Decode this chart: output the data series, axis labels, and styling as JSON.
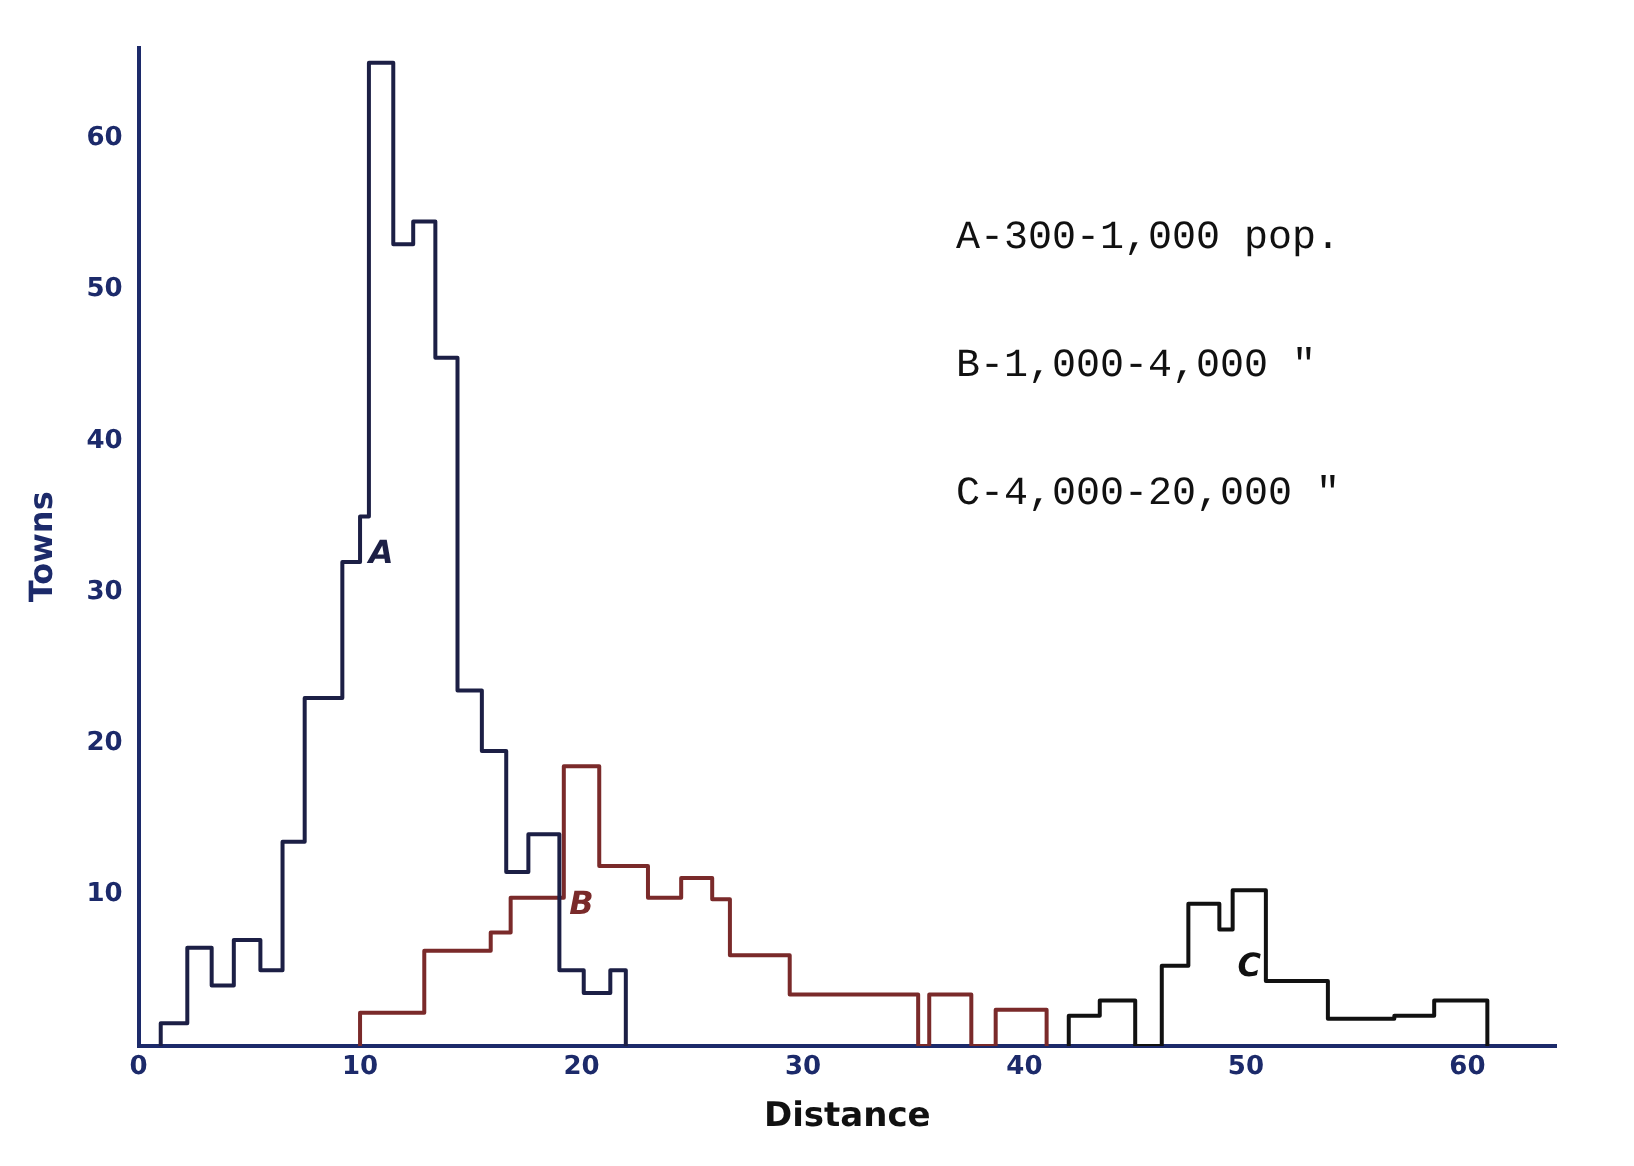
{
  "chart_data": {
    "type": "step",
    "xlabel": "Distance",
    "ylabel": "Towns",
    "xlim": [
      0,
      64
    ],
    "ylim": [
      0,
      66
    ],
    "xticks": [
      0,
      10,
      20,
      30,
      40,
      50,
      60
    ],
    "yticks": [
      10,
      20,
      30,
      40,
      50,
      60
    ],
    "grid": false,
    "legend": false,
    "marker": "none",
    "annotations": [
      "A-300-1,000 pop.",
      "B-1,000-4,000 \"",
      "C-4,000-20,000 \""
    ],
    "series": [
      {
        "name": "A",
        "color": "#1c1f45",
        "x": [
          1,
          1,
          2.2,
          3.3,
          4.3,
          5.5,
          6.5,
          7.5,
          9.2,
          10,
          10.4,
          11.5,
          12.4,
          13.4,
          14.4,
          15.5,
          16.6,
          17.6,
          19,
          20.1,
          21.3,
          22
        ],
        "values": [
          0,
          1.5,
          6.5,
          4,
          7,
          5,
          13.5,
          23,
          32,
          35,
          65,
          53,
          54.5,
          45.5,
          23.5,
          19.5,
          11.5,
          14,
          5,
          3.5,
          5,
          0
        ]
      },
      {
        "name": "B",
        "color": "#7a2a2a",
        "x": [
          10,
          10,
          12.9,
          15.9,
          16.8,
          19.2,
          20.8,
          23,
          24.5,
          25.9,
          26.7,
          29.4,
          35.2,
          35.7,
          37.6,
          38.7,
          41
        ],
        "values": [
          0,
          2.2,
          6.3,
          7.5,
          9.8,
          18.5,
          11.9,
          9.8,
          11.1,
          9.7,
          6,
          3.4,
          0,
          3.4,
          0,
          2.4,
          0
        ]
      },
      {
        "name": "C",
        "color": "#111111",
        "x": [
          42,
          42,
          43.4,
          45,
          46.2,
          47.4,
          48.8,
          49.4,
          50.9,
          53.7,
          56.7,
          58.5,
          60.9
        ],
        "values": [
          0,
          2,
          3,
          0,
          5.3,
          9.4,
          7.7,
          10.3,
          4.3,
          1.8,
          2,
          3,
          0
        ]
      }
    ]
  }
}
